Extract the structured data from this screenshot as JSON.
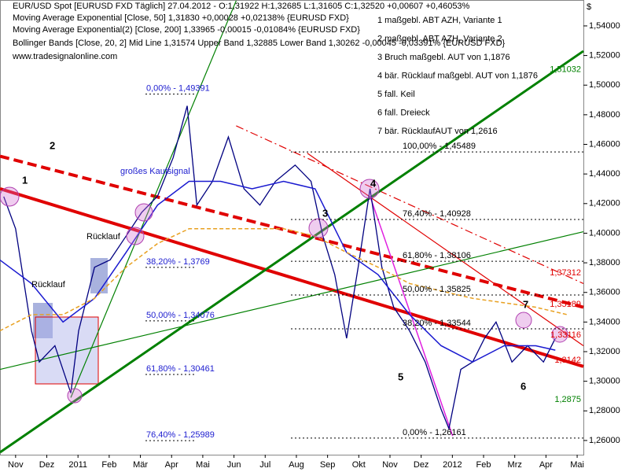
{
  "chart_data": {
    "type": "line",
    "header": "EUR/USD Spot [EURUSD FXD  Täglich] 27.04.2012 - O:1,31922 H:1,32685 L:1,31605 C:1,32520 +0,00607 +0,46053%",
    "legend_lines": [
      "Moving Average Exponential [Close, 50] 1,31830 +0,00028 +0,02138% {EURUSD FXD}",
      "Moving Average Exponential(2) [Close, 200] 1,33965 -0,00015 -0,01084% {EURUSD FXD}",
      "Bollinger Bands [Close, 20, 2] Mid Line 1,31574 Upper Band 1,32885 Lower Band 1,30262 -0,00045 -0,03391% {EURUSD FXD}",
      "www.tradesignalonline.com"
    ],
    "y_axis_label": "$",
    "xlim": [
      -0.5,
      18.2
    ],
    "xticks": [
      {
        "value": 0,
        "label": "Nov"
      },
      {
        "value": 1,
        "label": "Dez"
      },
      {
        "value": 2,
        "label": "2011"
      },
      {
        "value": 3,
        "label": "Feb"
      },
      {
        "value": 4,
        "label": "Mär"
      },
      {
        "value": 5,
        "label": "Apr"
      },
      {
        "value": 6,
        "label": "Mai"
      },
      {
        "value": 7,
        "label": "Jun"
      },
      {
        "value": 8,
        "label": "Jul"
      },
      {
        "value": 9,
        "label": "Aug"
      },
      {
        "value": 10,
        "label": "Sep"
      },
      {
        "value": 11,
        "label": "Okt"
      },
      {
        "value": 12,
        "label": "Nov"
      },
      {
        "value": 13,
        "label": "Dez"
      },
      {
        "value": 14,
        "label": "2012"
      },
      {
        "value": 15,
        "label": "Feb"
      },
      {
        "value": 16,
        "label": "Mrz"
      },
      {
        "value": 17,
        "label": "Apr"
      },
      {
        "value": 18,
        "label": "Mai"
      }
    ],
    "ylim": [
      1.2504,
      1.5575
    ],
    "yticks": [
      {
        "value": 1.26,
        "label": "1,26000"
      },
      {
        "value": 1.28,
        "label": "1,28000"
      },
      {
        "value": 1.3,
        "label": "1,30000"
      },
      {
        "value": 1.32,
        "label": "1,32000"
      },
      {
        "value": 1.34,
        "label": "1,34000"
      },
      {
        "value": 1.36,
        "label": "1,36000"
      },
      {
        "value": 1.38,
        "label": "1,38000"
      },
      {
        "value": 1.4,
        "label": "1,40000"
      },
      {
        "value": 1.42,
        "label": "1,42000"
      },
      {
        "value": 1.44,
        "label": "1,44000"
      },
      {
        "value": 1.46,
        "label": "1,46000"
      },
      {
        "value": 1.48,
        "label": "1,48000"
      },
      {
        "value": 1.5,
        "label": "1,50000"
      },
      {
        "value": 1.52,
        "label": "1,52000"
      },
      {
        "value": 1.54,
        "label": "1,54000"
      }
    ],
    "series": [
      {
        "color": "#000080",
        "width": 1.3,
        "x": [
          -0.38,
          0,
          0.51,
          0.76,
          1.26,
          1.77,
          2.02,
          2.53,
          3.03,
          3.54,
          4.04,
          4.55,
          5.05,
          5.5,
          5.81,
          6.31,
          6.82,
          7.32,
          7.83,
          8.33,
          8.96,
          9.47,
          9.85,
          10.23,
          10.61,
          10.98,
          11.36,
          11.74,
          12.12,
          12.63,
          13.13,
          13.64,
          13.89,
          14.27,
          14.65,
          15.03,
          15.4,
          15.91,
          16.41,
          16.92,
          17.3
        ],
        "values": [
          1.4247,
          1.403,
          1.334,
          1.313,
          1.324,
          1.292,
          1.334,
          1.377,
          1.382,
          1.398,
          1.414,
          1.425,
          1.451,
          1.486,
          1.419,
          1.435,
          1.465,
          1.43,
          1.419,
          1.435,
          1.446,
          1.435,
          1.398,
          1.372,
          1.329,
          1.377,
          1.43,
          1.377,
          1.35,
          1.334,
          1.313,
          1.281,
          1.268,
          1.308,
          1.313,
          1.329,
          1.34,
          1.313,
          1.324,
          1.313,
          1.329
        ]
      },
      {
        "color": "#1a1ad0",
        "width": 1.5,
        "x": [
          -0.51,
          0.51,
          1.52,
          2.53,
          3.54,
          4.55,
          5.56,
          6.57,
          7.58,
          8.59,
          9.6,
          10.61,
          11.62,
          12.63,
          13.64,
          14.65,
          15.66,
          16.67,
          17.3
        ],
        "values": [
          1.382,
          1.366,
          1.34,
          1.356,
          1.387,
          1.419,
          1.435,
          1.435,
          1.43,
          1.435,
          1.43,
          1.387,
          1.372,
          1.345,
          1.324,
          1.313,
          1.324,
          1.324,
          1.321
        ]
      },
      {
        "color": "#e8a020",
        "width": 1.5,
        "dash": "5 3",
        "x": [
          -0.51,
          0.51,
          1.52,
          2.53,
          3.54,
          4.55,
          5.56,
          6.57,
          7.58,
          8.59,
          9.6,
          10.61,
          11.62,
          12.63,
          13.64,
          14.65,
          15.66,
          16.67,
          17.68
        ],
        "values": [
          1.334,
          1.345,
          1.345,
          1.356,
          1.377,
          1.393,
          1.403,
          1.403,
          1.403,
          1.403,
          1.398,
          1.387,
          1.377,
          1.366,
          1.361,
          1.356,
          1.353,
          1.35,
          1.345
        ]
      }
    ],
    "trendlines": [
      {
        "color": "#e00000",
        "width": 4,
        "x": [
          -0.5,
          18.2
        ],
        "values": [
          1.43,
          1.31
        ]
      },
      {
        "color": "#e00000",
        "width": 4,
        "dash": "12 6",
        "x": [
          -0.5,
          18.2
        ],
        "values": [
          1.452,
          1.35
        ]
      },
      {
        "color": "#e00000",
        "width": 1.2,
        "x": [
          9.35,
          18.2
        ],
        "values": [
          1.454,
          1.324
        ]
      },
      {
        "color": "#e00000",
        "width": 1.2,
        "dash": "10 4 2 4",
        "x": [
          7.07,
          18.2
        ],
        "values": [
          1.4725,
          1.366
        ]
      },
      {
        "color": "#008000",
        "width": 3,
        "x": [
          -0.5,
          18.2
        ],
        "values": [
          1.252,
          1.523
        ]
      },
      {
        "color": "#008000",
        "width": 1.2,
        "x": [
          -0.5,
          18.2
        ],
        "values": [
          1.308,
          1.401
        ]
      },
      {
        "color": "#008000",
        "width": 1.2,
        "x": [
          1.77,
          7.07
        ],
        "values": [
          1.289,
          1.557
        ]
      },
      {
        "color": "#e020e0",
        "width": 1.5,
        "x": [
          11.36,
          14.01
        ],
        "values": [
          1.425,
          1.263
        ]
      }
    ],
    "fib_left": {
      "color": "#2020d0",
      "levels": [
        {
          "value": 1.49391,
          "label": "0,00% - 1,49391"
        },
        {
          "value": 1.3769,
          "label": "38,20% - 1,3769"
        },
        {
          "value": 1.34076,
          "label": "50,00% - 1,34076"
        },
        {
          "value": 1.30461,
          "label": "61,80% - 1,30461"
        },
        {
          "value": 1.25989,
          "label": "76,40% - 1,25989"
        }
      ]
    },
    "fib_right": {
      "color": "#000000",
      "levels": [
        {
          "value": 1.45489,
          "label": "100,00% - 1,45489"
        },
        {
          "value": 1.40928,
          "label": "76,40% - 1,40928"
        },
        {
          "value": 1.38106,
          "label": "61,80% - 1,38106"
        },
        {
          "value": 1.35825,
          "label": "50,00% - 1,35825"
        },
        {
          "value": 1.33544,
          "label": "38,20% - 1,33544"
        },
        {
          "value": 1.26161,
          "label": "0,00% - 1,26161"
        }
      ]
    },
    "price_labels": [
      {
        "value": 1.51032,
        "label": "1,51032",
        "color": "#008000"
      },
      {
        "value": 1.37312,
        "label": "1,37312",
        "color": "#e00000"
      },
      {
        "value": 1.35189,
        "label": "1,35189",
        "color": "#e00000"
      },
      {
        "value": 1.33116,
        "label": "1,33116",
        "color": "#e00000"
      },
      {
        "value": 1.3142,
        "label": "1,3142",
        "color": "#e00000"
      },
      {
        "value": 1.2875,
        "label": "1,2875",
        "color": "#008000"
      }
    ],
    "notes": [
      "1 maßgebl. ABT AZH, Variante 1",
      "2 maßgebl. ABT AZH, Variante 2",
      "3 Bruch maßgebl. AUT von 1,1876",
      "4 bär. Rücklauf maßgebl. AUT von 1,1876",
      "5 fall. Keil",
      "6 fall. Dreieck",
      "7 bär. RücklaufAUT von 1,2616"
    ],
    "annotations": [
      "1",
      "2",
      "3",
      "4",
      "5",
      "6",
      "7",
      "großes Kaufsignal",
      "Rücklauf",
      "Rücklauf"
    ]
  }
}
